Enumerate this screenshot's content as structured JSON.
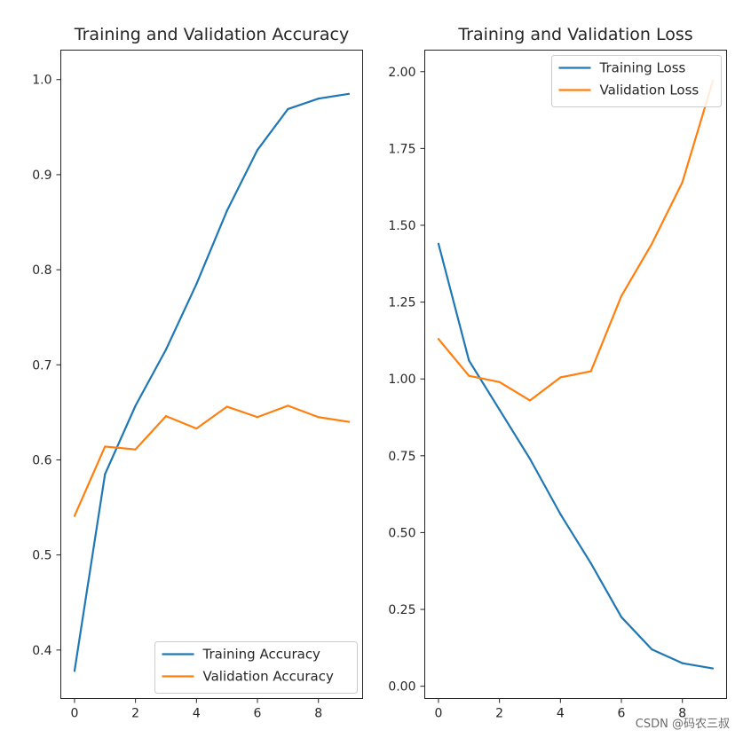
{
  "colors": {
    "training": "#1f77b4",
    "validation": "#ff7f0e"
  },
  "chart_data": [
    {
      "type": "line",
      "title": "Training and Validation Accuracy",
      "xlabel": "",
      "ylabel": "",
      "xlim": [
        -0.45,
        9.45
      ],
      "ylim": [
        0.349,
        1.031
      ],
      "xticks": [
        0,
        2,
        4,
        6,
        8
      ],
      "xtick_labels": [
        "0",
        "2",
        "4",
        "6",
        "8"
      ],
      "yticks": [
        0.4,
        0.5,
        0.6,
        0.7,
        0.8,
        0.9,
        1.0
      ],
      "ytick_labels": [
        "0.4",
        "0.5",
        "0.6",
        "0.7",
        "0.8",
        "0.9",
        "1.0"
      ],
      "grid": false,
      "legend_position": "lower-right",
      "x": [
        0,
        1,
        2,
        3,
        4,
        5,
        6,
        7,
        8,
        9
      ],
      "series": [
        {
          "name": "Training Accuracy",
          "color": "#1f77b4",
          "values": [
            0.378,
            0.585,
            0.657,
            0.716,
            0.785,
            0.862,
            0.926,
            0.969,
            0.98,
            0.985
          ]
        },
        {
          "name": "Validation Accuracy",
          "color": "#ff7f0e",
          "values": [
            0.541,
            0.614,
            0.611,
            0.646,
            0.633,
            0.656,
            0.645,
            0.657,
            0.645,
            0.64
          ]
        }
      ]
    },
    {
      "type": "line",
      "title": "Training and Validation Loss",
      "xlabel": "",
      "ylabel": "",
      "xlim": [
        -0.45,
        9.45
      ],
      "ylim": [
        -0.04,
        2.07
      ],
      "xticks": [
        0,
        2,
        4,
        6,
        8
      ],
      "xtick_labels": [
        "0",
        "2",
        "4",
        "6",
        "8"
      ],
      "yticks": [
        0.0,
        0.25,
        0.5,
        0.75,
        1.0,
        1.25,
        1.5,
        1.75,
        2.0
      ],
      "ytick_labels": [
        "0.00",
        "0.25",
        "0.50",
        "0.75",
        "1.00",
        "1.25",
        "1.50",
        "1.75",
        "2.00"
      ],
      "grid": false,
      "legend_position": "upper-right",
      "x": [
        0,
        1,
        2,
        3,
        4,
        5,
        6,
        7,
        8,
        9
      ],
      "series": [
        {
          "name": "Training Loss",
          "color": "#1f77b4",
          "values": [
            1.44,
            1.06,
            0.9,
            0.74,
            0.56,
            0.4,
            0.225,
            0.12,
            0.075,
            0.058
          ]
        },
        {
          "name": "Validation Loss",
          "color": "#ff7f0e",
          "values": [
            1.13,
            1.01,
            0.99,
            0.93,
            1.005,
            1.025,
            1.27,
            1.44,
            1.64,
            1.97
          ]
        }
      ]
    }
  ],
  "watermark": "CSDN @码农三叔"
}
